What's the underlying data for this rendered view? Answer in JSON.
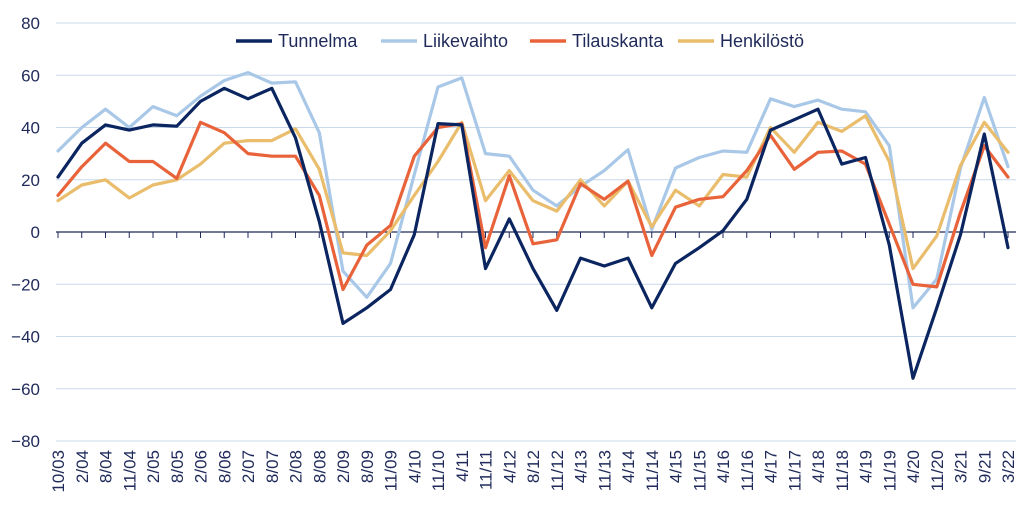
{
  "chart_data": {
    "type": "line",
    "title": "",
    "xlabel": "",
    "ylabel": "",
    "ylim": [
      -80,
      80
    ],
    "yticks": [
      -80,
      -60,
      -40,
      -20,
      0,
      20,
      40,
      60,
      80
    ],
    "ytick_labels": [
      "−80",
      "−60",
      "−40",
      "−20",
      "0",
      "20",
      "40",
      "60",
      "80"
    ],
    "grid": "horizontal",
    "legend_position": "top-center",
    "x_tick_labels": [
      "10/03",
      "2/04",
      "8/04",
      "11/04",
      "2/05",
      "8/05",
      "2/06",
      "8/06",
      "2/07",
      "8/07",
      "2/08",
      "8/08",
      "2/09",
      "8/09",
      "11/09",
      "4/10",
      "11/10",
      "4/11",
      "11/11",
      "4/12",
      "8/12",
      "11/12",
      "4/13",
      "11/13",
      "4/14",
      "11/14",
      "4/15",
      "11/15",
      "4/16",
      "11/16",
      "4/17",
      "11/17",
      "4/18",
      "11/18",
      "4/19",
      "11/19",
      "4/20",
      "11/20",
      "3/21",
      "9/21",
      "3/22"
    ],
    "series": [
      {
        "name": "Tunnelma",
        "color": "#0b2560",
        "values": [
          21,
          34,
          41,
          39,
          41,
          40.5,
          50,
          55,
          51,
          55,
          36,
          4,
          -35,
          -29,
          -22,
          -1,
          41.5,
          41,
          -14,
          5,
          -14,
          -30,
          -10,
          -13,
          -10,
          -29,
          -12,
          -6,
          0.5,
          12.5,
          39,
          43,
          47,
          26,
          28.5,
          -5,
          -56,
          -29,
          -1,
          37.5,
          -6
        ]
      },
      {
        "name": "Liikevaihto",
        "color": "#a9c8e8",
        "values": [
          31,
          40,
          47,
          40,
          48,
          44.5,
          52,
          58,
          61,
          57,
          57.5,
          38,
          -15,
          -25,
          -12,
          22,
          55.5,
          59,
          30,
          29,
          16,
          10,
          17.5,
          23.5,
          31.5,
          1,
          24.5,
          28.5,
          31,
          30.5,
          51,
          48,
          50.5,
          47,
          46,
          33,
          -29,
          -18,
          24.5,
          51.5,
          25
        ]
      },
      {
        "name": "Tilauskanta",
        "color": "#e8633a",
        "values": [
          14,
          25,
          34,
          27,
          27,
          20.5,
          42,
          38,
          30,
          29,
          29,
          14,
          -22,
          -5,
          2.5,
          29,
          40,
          41.5,
          -6,
          21.5,
          -4.5,
          -3,
          18.5,
          12.5,
          19.5,
          -9,
          9.5,
          12.5,
          13.5,
          23.5,
          37,
          24,
          30.5,
          31,
          26,
          3,
          -20,
          -21,
          7.5,
          33,
          21
        ]
      },
      {
        "name": "Henkilöstö",
        "color": "#e9bd6c",
        "values": [
          12,
          18,
          20,
          13,
          18,
          20,
          26,
          34,
          35,
          35,
          39.5,
          24,
          -8,
          -9,
          0.5,
          14,
          27,
          42,
          12,
          23.5,
          12,
          8,
          20,
          10,
          19.5,
          2,
          16,
          10,
          22,
          21,
          40,
          30.5,
          42,
          38.5,
          44.5,
          27,
          -14,
          -1.5,
          25.5,
          42,
          30.5
        ]
      }
    ]
  }
}
